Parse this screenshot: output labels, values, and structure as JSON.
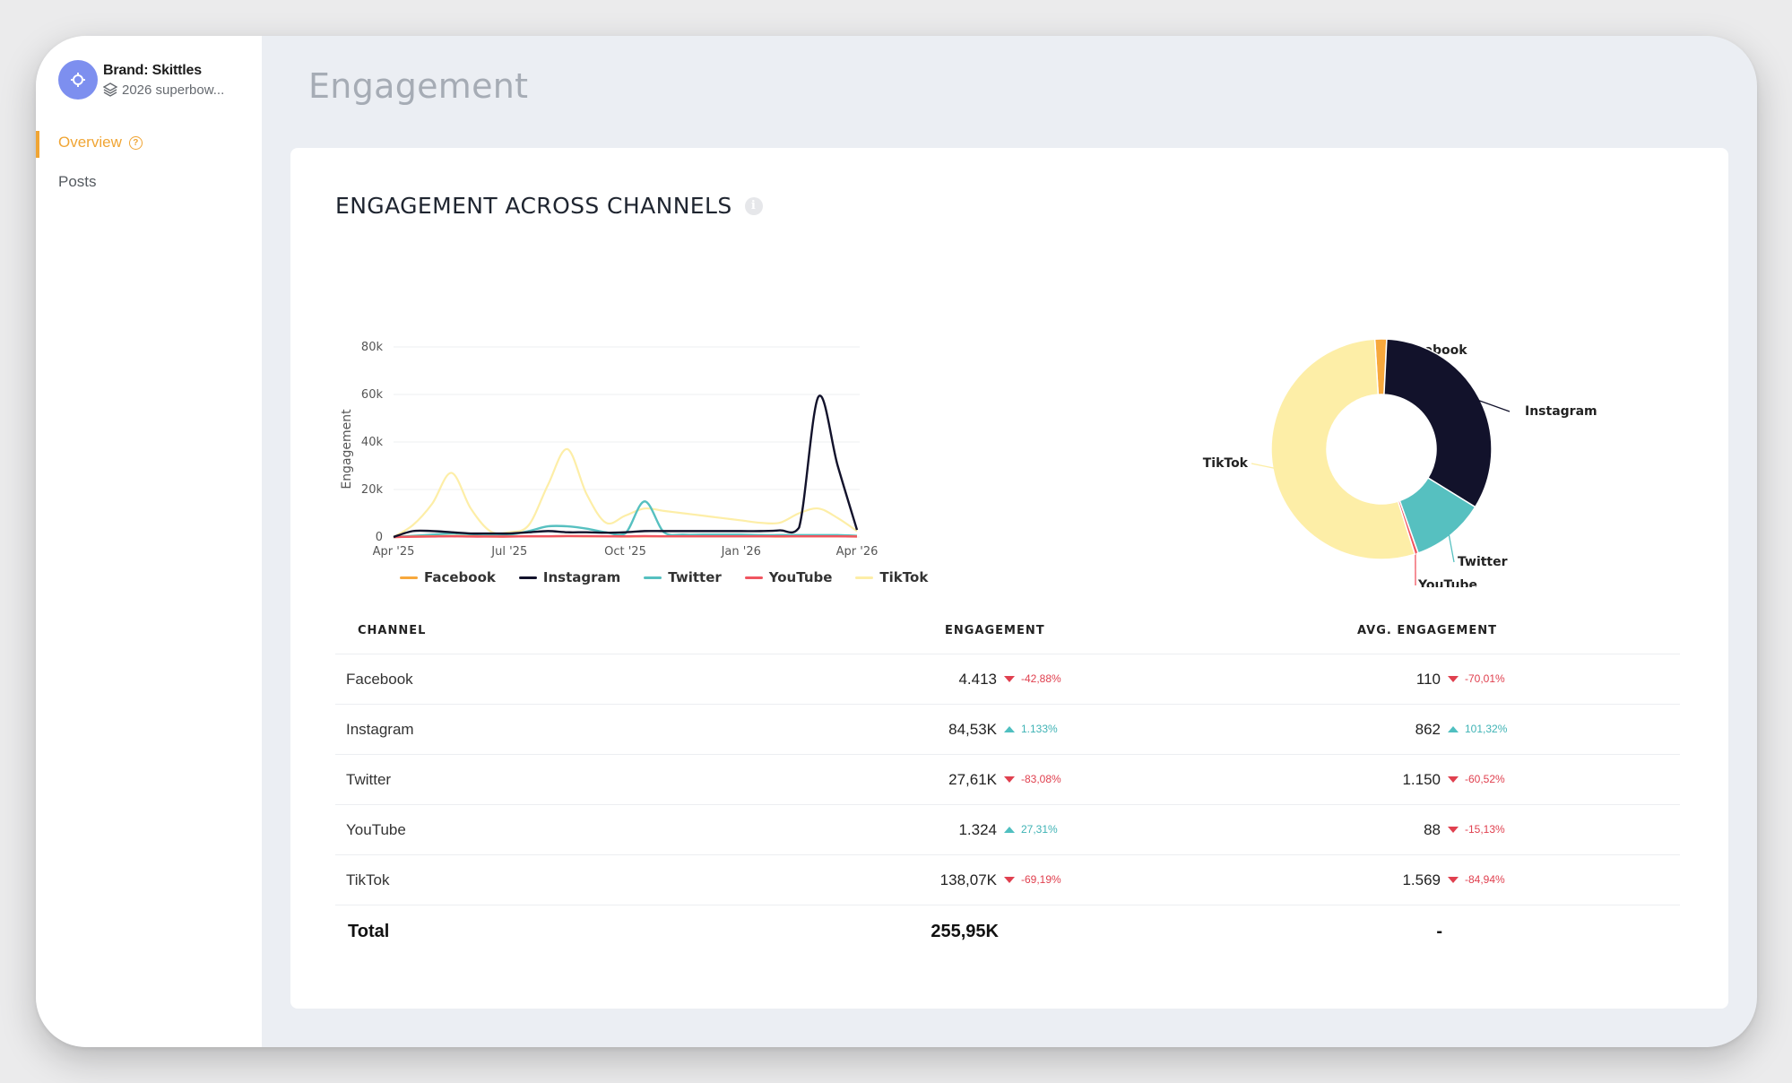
{
  "sidebar": {
    "brand_name": "Brand: Skittles",
    "brand_sub": "2026 superbow...",
    "items": [
      {
        "label": "Overview",
        "active": true
      },
      {
        "label": "Posts",
        "active": false
      }
    ]
  },
  "header": {
    "title": "Engagement"
  },
  "card": {
    "title": "ENGAGEMENT ACROSS CHANNELS"
  },
  "colors": {
    "Facebook": "#f7a83c",
    "Instagram": "#12122b",
    "Twitter": "#56c0c0",
    "YouTube": "#f05560",
    "TikTok": "#fdeea7",
    "accent": "#f0a534"
  },
  "chart_data": [
    {
      "type": "line",
      "ylabel": "Engagement",
      "xlabel": "",
      "x": [
        "2025-04-01",
        "2025-04-15",
        "2025-05-01",
        "2025-05-15",
        "2025-06-01",
        "2025-06-15",
        "2025-07-01",
        "2025-07-15",
        "2025-08-01",
        "2025-08-15",
        "2025-09-01",
        "2025-09-15",
        "2025-10-01",
        "2025-10-15",
        "2025-11-01",
        "2025-11-15",
        "2025-12-01",
        "2025-12-15",
        "2026-01-01",
        "2026-01-15",
        "2026-02-01",
        "2026-02-15",
        "2026-03-01",
        "2026-03-15",
        "2026-04-01"
      ],
      "x_ticks": [
        "Apr '25",
        "Jul '25",
        "Oct '25",
        "Jan '26",
        "Apr '26"
      ],
      "y_ticks": [
        "0",
        "20k",
        "40k",
        "60k",
        "80k"
      ],
      "ylim": [
        0,
        80000
      ],
      "grid": true,
      "legend": "bottom",
      "series": [
        {
          "name": "Facebook",
          "values": [
            0,
            200,
            300,
            400,
            300,
            200,
            200,
            300,
            300,
            400,
            300,
            300,
            200,
            300,
            300,
            300,
            300,
            300,
            300,
            300,
            200,
            300,
            300,
            300,
            200
          ]
        },
        {
          "name": "Instagram",
          "values": [
            0,
            2500,
            2500,
            2000,
            1500,
            1500,
            1500,
            2000,
            2500,
            2000,
            2000,
            1800,
            2000,
            2500,
            2500,
            2500,
            2500,
            2500,
            2500,
            2500,
            2800,
            4000,
            59000,
            30000,
            3000
          ]
        },
        {
          "name": "Twitter",
          "values": [
            0,
            500,
            1000,
            1500,
            1200,
            1000,
            1000,
            2500,
            4500,
            4500,
            3500,
            2000,
            1500,
            15000,
            2000,
            1000,
            1000,
            1000,
            1000,
            800,
            800,
            800,
            800,
            800,
            500
          ]
        },
        {
          "name": "YouTube",
          "values": [
            0,
            100,
            200,
            300,
            200,
            200,
            200,
            300,
            300,
            400,
            400,
            300,
            300,
            400,
            300,
            300,
            300,
            300,
            300,
            300,
            300,
            300,
            300,
            300,
            200
          ]
        },
        {
          "name": "TikTok",
          "values": [
            0,
            5000,
            14000,
            27000,
            12000,
            2500,
            2000,
            5000,
            22000,
            37000,
            18000,
            6000,
            9000,
            12000,
            11000,
            10000,
            9000,
            8000,
            7000,
            6000,
            6000,
            10000,
            12000,
            8000,
            2500
          ]
        }
      ]
    },
    {
      "type": "pie",
      "donut": true,
      "categories": [
        "Facebook",
        "Instagram",
        "Twitter",
        "YouTube",
        "TikTok"
      ],
      "values": [
        4413,
        84530,
        27610,
        1324,
        138070
      ]
    }
  ],
  "table": {
    "headers": [
      "CHANNEL",
      "ENGAGEMENT",
      "AVG. ENGAGEMENT"
    ],
    "rows": [
      {
        "channel": "Facebook",
        "engagement": "4.413",
        "eng_change": "-42,88%",
        "eng_dir": "down",
        "avg": "110",
        "avg_change": "-70,01%",
        "avg_dir": "down"
      },
      {
        "channel": "Instagram",
        "engagement": "84,53K",
        "eng_change": "1.133%",
        "eng_dir": "up",
        "avg": "862",
        "avg_change": "101,32%",
        "avg_dir": "up"
      },
      {
        "channel": "Twitter",
        "engagement": "27,61K",
        "eng_change": "-83,08%",
        "eng_dir": "down",
        "avg": "1.150",
        "avg_change": "-60,52%",
        "avg_dir": "down"
      },
      {
        "channel": "YouTube",
        "engagement": "1.324",
        "eng_change": "27,31%",
        "eng_dir": "up",
        "avg": "88",
        "avg_change": "-15,13%",
        "avg_dir": "down"
      },
      {
        "channel": "TikTok",
        "engagement": "138,07K",
        "eng_change": "-69,19%",
        "eng_dir": "down",
        "avg": "1.569",
        "avg_change": "-84,94%",
        "avg_dir": "down"
      }
    ],
    "total": {
      "label": "Total",
      "engagement": "255,95K",
      "avg": "-"
    }
  }
}
